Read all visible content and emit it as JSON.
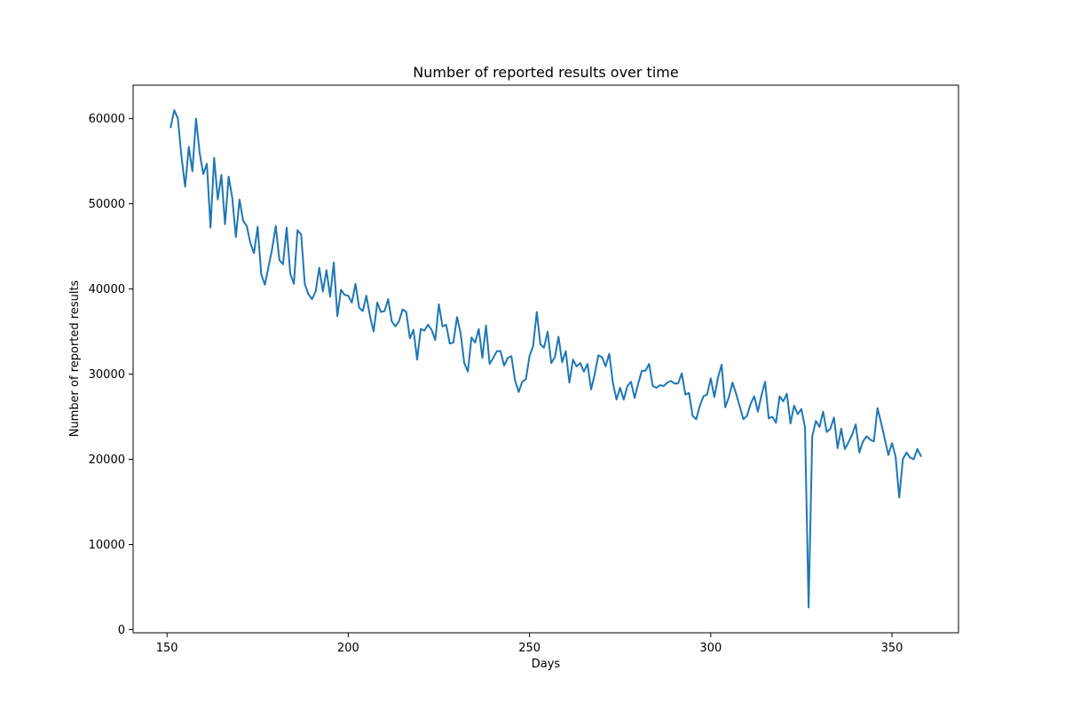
{
  "chart_data": {
    "type": "line",
    "title": "Number of reported results over time",
    "xlabel": "Days",
    "ylabel": "Number of reported results",
    "xlim": [
      140.65,
      368.35
    ],
    "ylim": [
      -372.5,
      63925
    ],
    "xticks": [
      150,
      200,
      250,
      300,
      350
    ],
    "yticks": [
      0,
      10000,
      20000,
      30000,
      40000,
      50000,
      60000
    ],
    "line_color": "#1f77b4",
    "grid": false,
    "series": [
      {
        "x": [
          151,
          152,
          153,
          154,
          155,
          156,
          157,
          158,
          159,
          160,
          161,
          162,
          163,
          164,
          165,
          166,
          167,
          168,
          169,
          170,
          171,
          172,
          173,
          174,
          175,
          176,
          177,
          178,
          179,
          180,
          181,
          182,
          183,
          184,
          185,
          186,
          187,
          188,
          189,
          190,
          191,
          192,
          193,
          194,
          195,
          196,
          197,
          198,
          199,
          200,
          201,
          202,
          203,
          204,
          205,
          206,
          207,
          208,
          209,
          210,
          211,
          212,
          213,
          214,
          215,
          216,
          217,
          218,
          219,
          220,
          221,
          222,
          223,
          224,
          225,
          226,
          227,
          228,
          229,
          230,
          231,
          232,
          233,
          234,
          235,
          236,
          237,
          238,
          239,
          240,
          241,
          242,
          243,
          244,
          245,
          246,
          247,
          248,
          249,
          250,
          251,
          252,
          253,
          254,
          255,
          256,
          257,
          258,
          259,
          260,
          261,
          262,
          263,
          264,
          265,
          266,
          267,
          268,
          269,
          270,
          271,
          272,
          273,
          274,
          275,
          276,
          277,
          278,
          279,
          280,
          281,
          282,
          283,
          284,
          285,
          286,
          287,
          288,
          289,
          290,
          291,
          292,
          293,
          294,
          295,
          296,
          297,
          298,
          299,
          300,
          301,
          302,
          303,
          304,
          305,
          306,
          307,
          308,
          309,
          310,
          311,
          312,
          313,
          314,
          315,
          316,
          317,
          318,
          319,
          320,
          321,
          322,
          323,
          324,
          325,
          326,
          327,
          328,
          329,
          330,
          331,
          332,
          333,
          334,
          335,
          336,
          337,
          338,
          339,
          340,
          341,
          342,
          343,
          344,
          345,
          346,
          347,
          348,
          349,
          350,
          351,
          352,
          353,
          354,
          355,
          356,
          357,
          358
        ],
        "y": [
          59000,
          61000,
          60000,
          55500,
          52000,
          56700,
          53800,
          60000,
          56000,
          53500,
          54700,
          47200,
          55400,
          50500,
          53400,
          47600,
          53200,
          50700,
          46100,
          50500,
          48000,
          47400,
          45400,
          44200,
          47300,
          41700,
          40500,
          42600,
          44700,
          47400,
          43400,
          42900,
          47200,
          41800,
          40600,
          46900,
          46400,
          40600,
          39400,
          38800,
          39700,
          42500,
          39700,
          42200,
          39100,
          43100,
          36800,
          39900,
          39300,
          39200,
          38400,
          40600,
          37800,
          37400,
          39200,
          36800,
          35000,
          38400,
          37300,
          37400,
          38800,
          36200,
          35600,
          36200,
          37600,
          37300,
          34200,
          35200,
          31700,
          35300,
          35100,
          35800,
          35200,
          34000,
          38200,
          35600,
          35800,
          33600,
          33700,
          36700,
          34800,
          31300,
          30300,
          34300,
          33700,
          35300,
          31900,
          35700,
          31200,
          31900,
          32700,
          32700,
          31000,
          31900,
          32100,
          29300,
          27900,
          29100,
          29400,
          32100,
          33300,
          37300,
          33500,
          33100,
          35000,
          31300,
          32000,
          34400,
          31400,
          32700,
          29000,
          31700,
          30900,
          31300,
          30300,
          31200,
          28200,
          30000,
          32200,
          32000,
          30900,
          32400,
          29000,
          27000,
          28400,
          27000,
          28600,
          29100,
          27200,
          28900,
          30400,
          30400,
          31200,
          28600,
          28400,
          28700,
          28600,
          29000,
          29200,
          28900,
          28900,
          30100,
          27600,
          27800,
          25100,
          24700,
          26300,
          27400,
          27600,
          29500,
          27300,
          29600,
          31100,
          26100,
          27300,
          29000,
          27700,
          26200,
          24700,
          25100,
          26500,
          27400,
          25600,
          27500,
          29100,
          24800,
          25000,
          24300,
          27400,
          26800,
          27700,
          24200,
          26300,
          25300,
          25900,
          23800,
          2600,
          22700,
          24500,
          23800,
          25600,
          23200,
          23600,
          24900,
          21300,
          23600,
          21200,
          22000,
          22900,
          24100,
          20800,
          22100,
          22700,
          22300,
          22100,
          26000,
          24300,
          22400,
          20500,
          21900,
          20300,
          15500,
          20000,
          20800,
          20200,
          20000,
          21200,
          20400
        ]
      }
    ]
  }
}
